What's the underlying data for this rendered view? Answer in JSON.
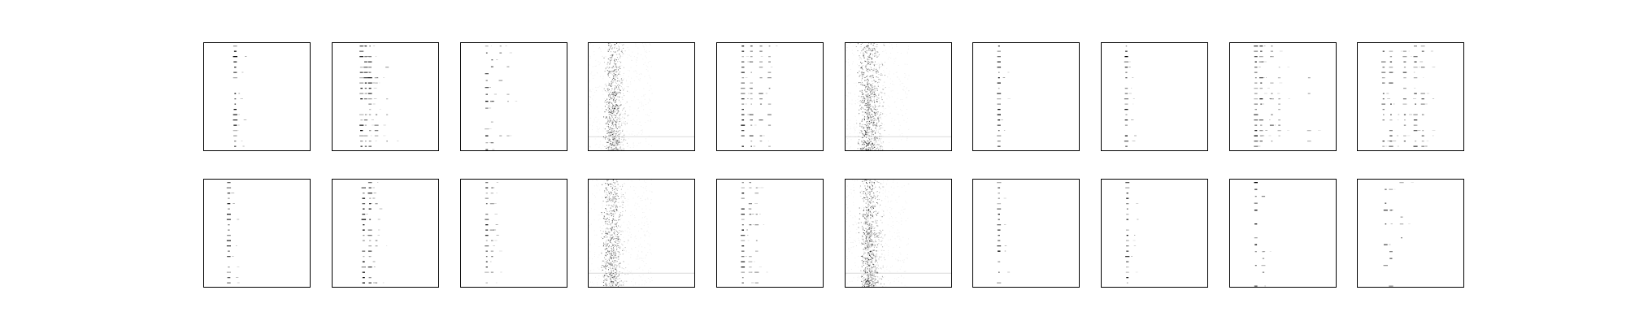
{
  "figure": {
    "background": "#ffffff",
    "axes_border_color": "#000000",
    "ink_color": "#000000"
  },
  "chart_data": {
    "type": "heatmap",
    "layout": {
      "rows": 2,
      "cols": 10
    },
    "show_ticks": false,
    "show_grid": false,
    "colormap": "gray_r",
    "title": "",
    "xlabel": "",
    "ylabel": "",
    "panels": [
      {
        "row": 0,
        "col": 0,
        "style": "column",
        "columns": [
          [
            0.3,
            1.0
          ]
        ],
        "seed": 11
      },
      {
        "row": 0,
        "col": 1,
        "style": "multi",
        "columns": [
          [
            0.28,
            1.0
          ],
          [
            0.32,
            0.9
          ],
          [
            0.36,
            0.8
          ],
          [
            0.42,
            0.35
          ],
          [
            0.52,
            0.2
          ]
        ],
        "seed": 12
      },
      {
        "row": 0,
        "col": 2,
        "style": "sparse",
        "columns": [
          [
            0.25,
            1.0
          ],
          [
            0.3,
            0.6
          ],
          [
            0.38,
            0.35
          ],
          [
            0.45,
            0.25
          ]
        ],
        "seed": 13
      },
      {
        "row": 0,
        "col": 3,
        "style": "dense",
        "columns": [
          [
            0.22,
            1.0
          ],
          [
            0.26,
            0.7
          ],
          [
            0.3,
            0.35
          ]
        ],
        "band_row": 0.87,
        "seed": 14
      },
      {
        "row": 0,
        "col": 4,
        "style": "multi",
        "columns": [
          [
            0.25,
            1.0
          ],
          [
            0.33,
            0.6
          ],
          [
            0.42,
            0.45
          ],
          [
            0.5,
            0.35
          ]
        ],
        "seed": 15
      },
      {
        "row": 0,
        "col": 5,
        "style": "dense",
        "columns": [
          [
            0.18,
            0.9
          ],
          [
            0.24,
            1.0
          ],
          [
            0.3,
            0.5
          ]
        ],
        "band_row": 0.87,
        "seed": 16
      },
      {
        "row": 0,
        "col": 6,
        "style": "column",
        "columns": [
          [
            0.25,
            1.0
          ]
        ],
        "seed": 17
      },
      {
        "row": 0,
        "col": 7,
        "style": "column",
        "columns": [
          [
            0.24,
            1.0
          ]
        ],
        "seed": 18
      },
      {
        "row": 0,
        "col": 8,
        "style": "multi",
        "columns": [
          [
            0.25,
            1.0
          ],
          [
            0.3,
            0.9
          ],
          [
            0.4,
            0.5
          ],
          [
            0.47,
            0.3
          ],
          [
            0.75,
            0.15
          ]
        ],
        "seed": 19
      },
      {
        "row": 0,
        "col": 9,
        "style": "multi",
        "columns": [
          [
            0.25,
            0.8
          ],
          [
            0.32,
            0.7
          ],
          [
            0.45,
            0.6
          ],
          [
            0.55,
            0.65
          ],
          [
            0.62,
            0.55
          ]
        ],
        "seed": 20
      },
      {
        "row": 1,
        "col": 0,
        "style": "column",
        "columns": [
          [
            0.24,
            1.0
          ]
        ],
        "seed": 21
      },
      {
        "row": 1,
        "col": 1,
        "style": "multi",
        "columns": [
          [
            0.3,
            1.0
          ],
          [
            0.36,
            0.8
          ],
          [
            0.42,
            0.3
          ]
        ],
        "seed": 22
      },
      {
        "row": 1,
        "col": 2,
        "style": "column",
        "columns": [
          [
            0.25,
            1.0
          ],
          [
            0.3,
            0.4
          ]
        ],
        "seed": 23
      },
      {
        "row": 1,
        "col": 3,
        "style": "dense",
        "columns": [
          [
            0.2,
            1.0
          ],
          [
            0.25,
            0.7
          ],
          [
            0.3,
            0.3
          ]
        ],
        "band_row": 0.87,
        "seed": 24
      },
      {
        "row": 1,
        "col": 4,
        "style": "column",
        "columns": [
          [
            0.25,
            1.0
          ],
          [
            0.32,
            0.4
          ],
          [
            0.38,
            0.25
          ]
        ],
        "seed": 25
      },
      {
        "row": 1,
        "col": 5,
        "style": "dense",
        "columns": [
          [
            0.2,
            0.9
          ],
          [
            0.24,
            1.0
          ],
          [
            0.3,
            0.4
          ]
        ],
        "band_row": 0.87,
        "seed": 26
      },
      {
        "row": 1,
        "col": 6,
        "style": "column",
        "columns": [
          [
            0.25,
            1.0
          ]
        ],
        "seed": 27
      },
      {
        "row": 1,
        "col": 7,
        "style": "column",
        "columns": [
          [
            0.25,
            1.0
          ]
        ],
        "seed": 28
      },
      {
        "row": 1,
        "col": 8,
        "style": "sparse",
        "columns": [
          [
            0.25,
            1.0
          ],
          [
            0.32,
            0.4
          ]
        ],
        "seed": 29
      },
      {
        "row": 1,
        "col": 9,
        "style": "sparse",
        "columns": [
          [
            0.27,
            0.7
          ],
          [
            0.32,
            0.6
          ],
          [
            0.42,
            0.4
          ]
        ],
        "seed": 30
      }
    ]
  }
}
